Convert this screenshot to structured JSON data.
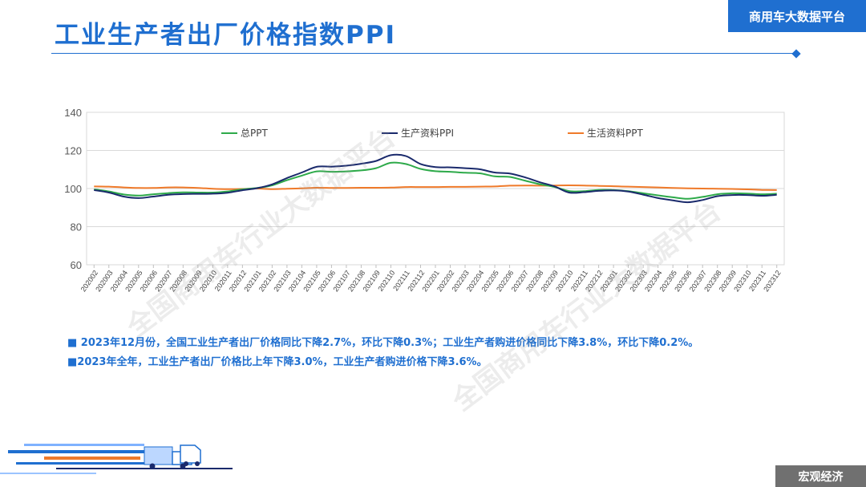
{
  "header": {
    "title": "工业生产者出厂价格指数PPI",
    "brand": "商用车大数据平台"
  },
  "watermark": "全国商用车行业大数据平台",
  "notes": {
    "line1": "■ 2023年12月份，全国工业生产者出厂价格同比下降2.7%，环比下降0.3%；工业生产者购进价格同比下降3.8%，环比下降0.2%。",
    "line2": "■2023年全年，工业生产者出厂价格比上年下降3.0%，工业生产者购进价格下降3.6%。"
  },
  "footer": {
    "section": "宏观经济"
  },
  "colors": {
    "accent": "#1f6fd0",
    "total": "#2eaa4a",
    "production": "#1a2a6c",
    "living": "#ef7a2a"
  },
  "chart_data": {
    "type": "line",
    "ylim": [
      60,
      140
    ],
    "yticks": [
      60,
      80,
      100,
      120,
      140
    ],
    "legend_position": "top",
    "categories": [
      "202002",
      "202003",
      "202004",
      "202005",
      "202006",
      "202007",
      "202008",
      "202009",
      "202010",
      "202011",
      "202012",
      "202101",
      "202102",
      "202103",
      "202104",
      "202105",
      "202106",
      "202107",
      "202108",
      "202109",
      "202110",
      "202111",
      "202112",
      "202201",
      "202202",
      "202203",
      "202204",
      "202205",
      "202206",
      "202207",
      "202208",
      "202209",
      "202210",
      "202211",
      "202212",
      "202301",
      "202302",
      "202303",
      "202304",
      "202305",
      "202306",
      "202307",
      "202308",
      "202309",
      "202310",
      "202311",
      "202312"
    ],
    "series": [
      {
        "name": "总PPT",
        "color": "#2eaa4a",
        "values": [
          99.6,
          98.5,
          96.9,
          96.3,
          97.0,
          97.6,
          98.0,
          97.9,
          97.9,
          98.5,
          99.6,
          100.3,
          101.7,
          104.4,
          106.8,
          109.0,
          108.8,
          109.0,
          109.5,
          110.7,
          113.5,
          112.9,
          110.3,
          109.1,
          108.8,
          108.3,
          108.0,
          106.4,
          106.1,
          104.2,
          102.3,
          100.9,
          98.7,
          98.6,
          99.3,
          99.2,
          98.6,
          97.5,
          96.4,
          95.4,
          94.6,
          95.6,
          97.0,
          97.5,
          97.4,
          97.0,
          97.3
        ]
      },
      {
        "name": "生产资料PPI",
        "color": "#1a2a6c",
        "values": [
          99.2,
          97.9,
          95.8,
          95.0,
          95.8,
          96.7,
          97.1,
          97.2,
          97.3,
          97.8,
          99.1,
          100.2,
          102.2,
          105.5,
          108.4,
          111.4,
          111.5,
          112.0,
          113.0,
          114.5,
          117.5,
          117.1,
          112.9,
          111.3,
          111.1,
          110.7,
          110.1,
          108.4,
          107.9,
          106.0,
          103.4,
          101.2,
          97.9,
          98.1,
          98.8,
          99.0,
          98.4,
          96.8,
          95.0,
          93.8,
          92.8,
          94.0,
          96.0,
          96.6,
          96.6,
          96.2,
          96.7
        ]
      },
      {
        "name": "生活资料PPT",
        "color": "#ef7a2a",
        "values": [
          101.1,
          101.0,
          100.6,
          100.3,
          100.3,
          100.6,
          100.6,
          100.3,
          99.9,
          99.7,
          99.8,
          100.0,
          99.7,
          99.9,
          100.1,
          100.4,
          100.3,
          100.3,
          100.4,
          100.4,
          100.5,
          100.8,
          100.8,
          100.8,
          100.9,
          100.9,
          101.0,
          101.1,
          101.5,
          101.6,
          101.5,
          101.6,
          101.7,
          101.6,
          101.4,
          101.2,
          101.0,
          100.8,
          100.6,
          100.3,
          100.1,
          100.0,
          99.9,
          99.8,
          99.6,
          99.3,
          99.2
        ]
      }
    ]
  }
}
